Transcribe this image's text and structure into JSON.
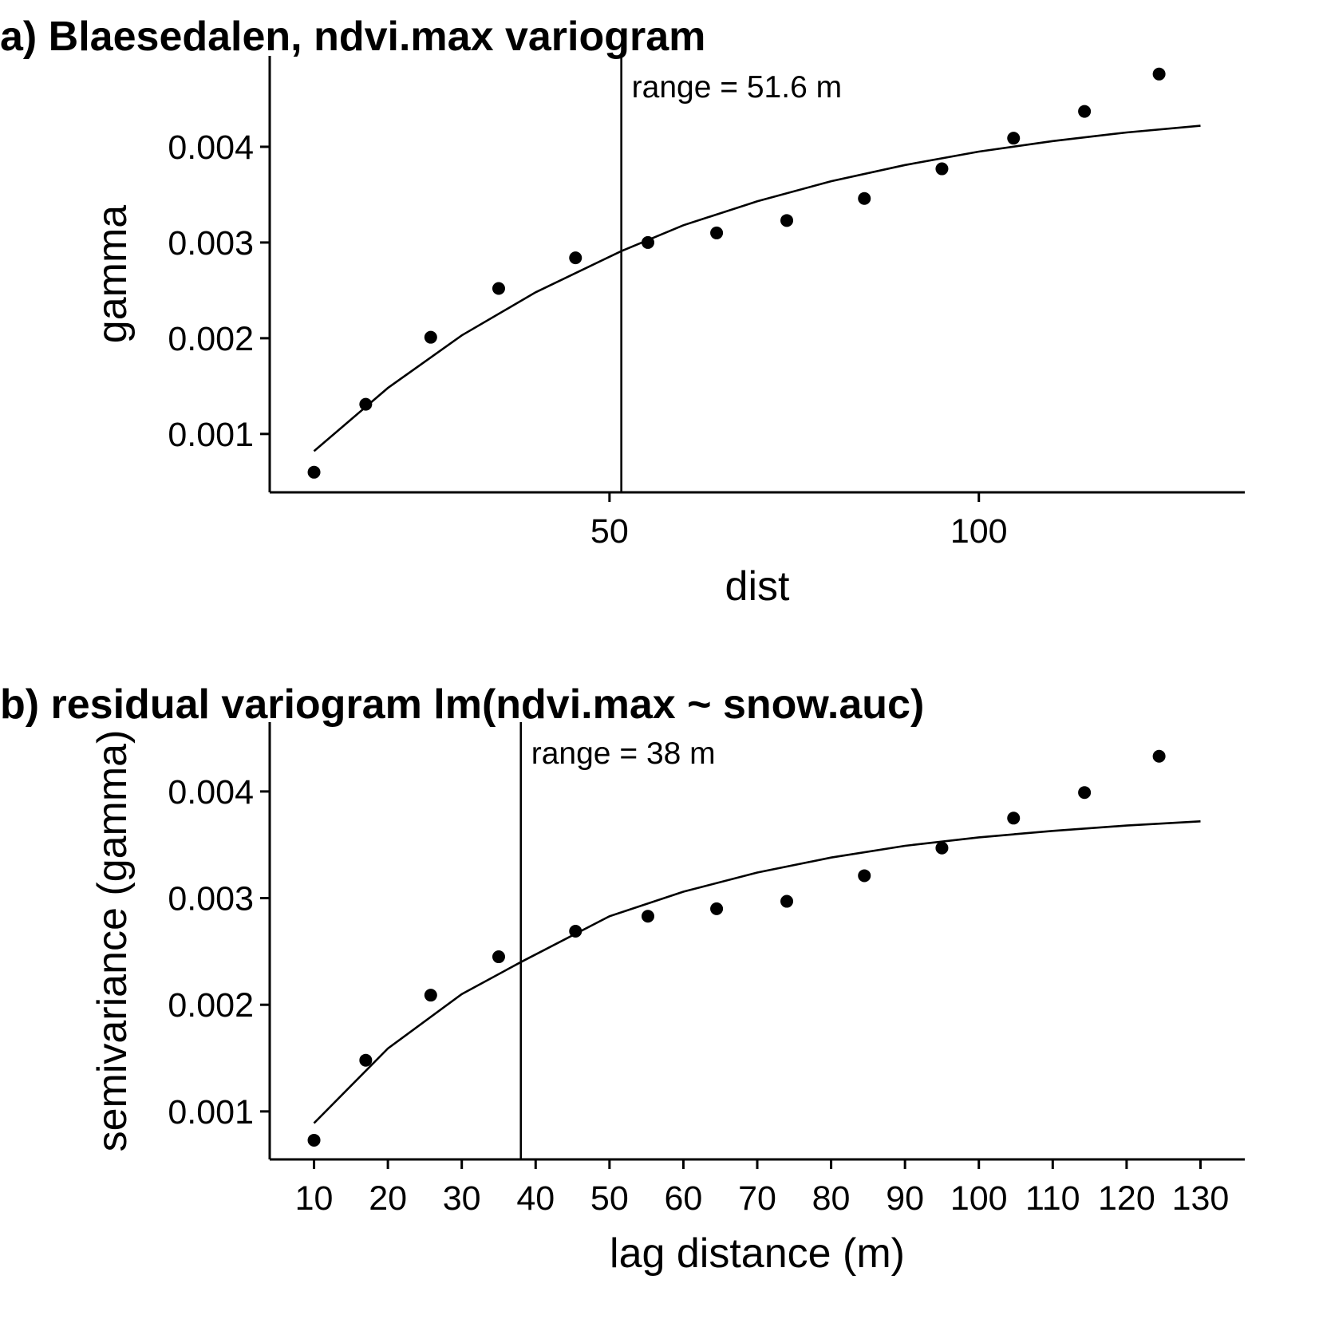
{
  "chart_data": [
    {
      "type": "scatter",
      "title": "a) Blaesedalen, ndvi.max variogram",
      "xlabel": "dist",
      "ylabel": "gamma",
      "xlim": [
        4,
        136
      ],
      "ylim": [
        0.00039,
        0.00495
      ],
      "xticks": [
        50,
        100
      ],
      "yticks": [
        0.001,
        0.002,
        0.003,
        0.004
      ],
      "grid": false,
      "legend": "none",
      "series": [
        {
          "kind": "points",
          "x": [
            10,
            17,
            25.8,
            35,
            45.4,
            55.2,
            64.5,
            74,
            84.5,
            95,
            104.7,
            114.3,
            124.4
          ],
          "y": [
            0.0006,
            0.00131,
            0.00201,
            0.00252,
            0.00284,
            0.003,
            0.0031,
            0.00323,
            0.00346,
            0.00377,
            0.00409,
            0.00437,
            0.00476
          ]
        },
        {
          "kind": "fitted-line",
          "x": [
            10,
            20,
            30,
            40,
            51.6,
            60,
            70,
            80,
            90,
            100,
            110,
            120,
            130
          ],
          "y": [
            0.00082,
            0.00148,
            0.00203,
            0.00248,
            0.00291,
            0.00318,
            0.00343,
            0.00364,
            0.00381,
            0.00395,
            0.00406,
            0.00415,
            0.00422
          ]
        }
      ],
      "annotations": [
        {
          "type": "vline",
          "x": 51.6,
          "label": "range = 51.6 m"
        }
      ]
    },
    {
      "type": "scatter",
      "title": "b) residual variogram lm(ndvi.max ~ snow.auc)",
      "xlabel": "lag distance (m)",
      "ylabel": "semivariance (gamma)",
      "xlim": [
        4,
        136
      ],
      "ylim": [
        0.00055,
        0.00465
      ],
      "xticks": [
        10,
        20,
        30,
        40,
        50,
        60,
        70,
        80,
        90,
        100,
        110,
        120,
        130
      ],
      "yticks": [
        0.001,
        0.002,
        0.003,
        0.004
      ],
      "grid": false,
      "legend": "none",
      "series": [
        {
          "kind": "points",
          "x": [
            10,
            17,
            25.8,
            35,
            45.4,
            55.2,
            64.5,
            74,
            84.5,
            95,
            104.7,
            114.3,
            124.4
          ],
          "y": [
            0.00073,
            0.00148,
            0.00209,
            0.00245,
            0.00269,
            0.00283,
            0.0029,
            0.00297,
            0.00321,
            0.00347,
            0.00375,
            0.00399,
            0.00433
          ]
        },
        {
          "kind": "fitted-line",
          "x": [
            10,
            20,
            30,
            38,
            50,
            60,
            70,
            80,
            90,
            100,
            110,
            120,
            130
          ],
          "y": [
            0.00089,
            0.00159,
            0.0021,
            0.0024,
            0.00283,
            0.00306,
            0.00324,
            0.00338,
            0.00349,
            0.00357,
            0.00363,
            0.00368,
            0.00372
          ]
        }
      ],
      "annotations": [
        {
          "type": "vline",
          "x": 38,
          "label": "range = 38 m"
        }
      ]
    }
  ]
}
